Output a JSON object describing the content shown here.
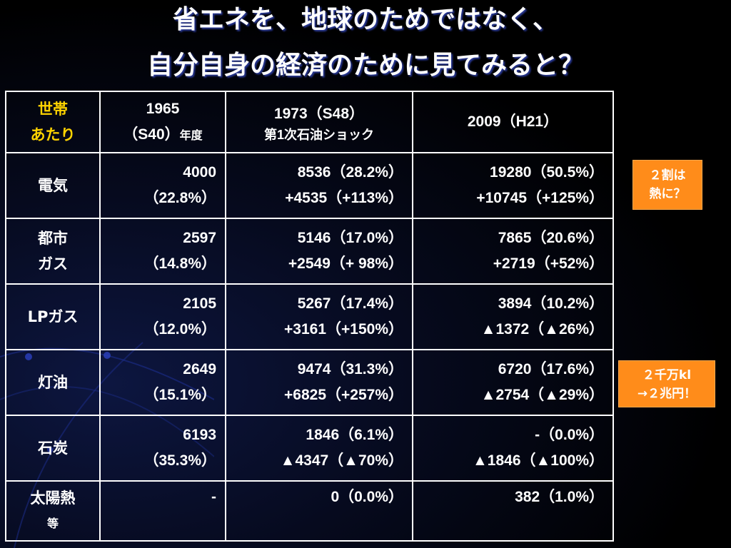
{
  "title": {
    "line1": "省エネを、地球のためではなく、",
    "line2": "自分自身の経済のために見てみると？"
  },
  "header": {
    "corner_line1": "世帯",
    "corner_line2": "あたり",
    "col1_year": "1965",
    "col1_sub": "（S40）",
    "col1_unit": "年度",
    "col2_line1": "1973（S48）",
    "col2_line2": "第1次石油ショック",
    "col3": "2009（H21）"
  },
  "rows": [
    {
      "label1": "電気",
      "label2": "",
      "c1a": "4000",
      "c1b": "（22.8%）",
      "c2a": "8536（28.2%）",
      "c2b": "+4535（+113%）",
      "c3a": "19280（50.5%）",
      "c3b": "+10745（+125%）"
    },
    {
      "label1": "都市",
      "label2": "ガス",
      "c1a": "2597",
      "c1b": "（14.8%）",
      "c2a": "5146（17.0%）",
      "c2b": "+2549（+ 98%）",
      "c3a": "7865（20.6%）",
      "c3b": "+2719（+52%）"
    },
    {
      "label1": "LPガス",
      "label2": "",
      "c1a": "2105",
      "c1b": "（12.0%）",
      "c2a": "5267（17.4%）",
      "c2b": "+3161（+150%）",
      "c3a": "3894（10.2%）",
      "c3b": "▲1372（▲26%）"
    },
    {
      "label1": "灯油",
      "label2": "",
      "c1a": "2649",
      "c1b": "（15.1%）",
      "c2a": "9474（31.3%）",
      "c2b": "+6825（+257%）",
      "c3a": "6720（17.6%）",
      "c3b": "▲2754（▲29%）"
    },
    {
      "label1": "石炭",
      "label2": "",
      "c1a": "6193",
      "c1b": "（35.3%）",
      "c2a": "1846（6.1%）",
      "c2b": "▲4347（▲70%）",
      "c3a": "-（0.0%）",
      "c3b": "▲1846（▲100%）"
    },
    {
      "label1": "太陽熱",
      "label2": "等",
      "c1a": "-",
      "c1b": "",
      "c2a": "0（0.0%）",
      "c2b": "",
      "c3a": "382（1.0%）",
      "c3b": ""
    }
  ],
  "notes": {
    "note1_line1": "２割は",
    "note1_line2": "熱に？",
    "note2_line1": "２千万kl",
    "note2_line2": "→２兆円！"
  },
  "colors": {
    "background": "#000000",
    "title_shadow": "#2a3a9a",
    "corner_label": "#ffd400",
    "note_box": "#ff8c1a"
  }
}
